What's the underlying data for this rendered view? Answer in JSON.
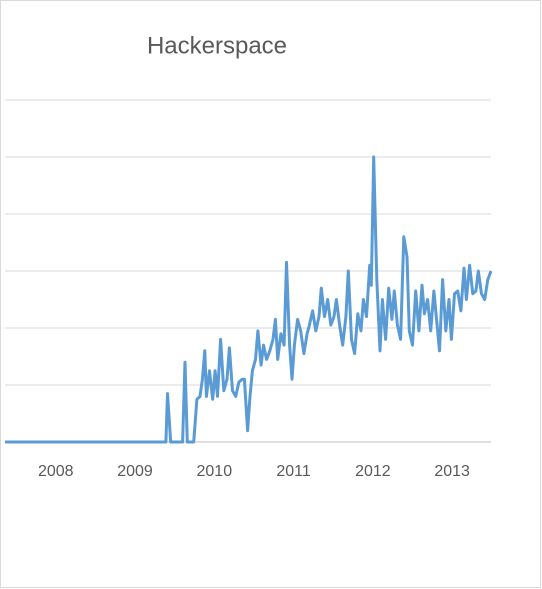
{
  "chart_data": {
    "type": "line",
    "title": "Hackerspace",
    "color": "#5b9bd5",
    "x": [
      2007.36,
      2009.39,
      2009.41,
      2009.45,
      2009.6,
      2009.63,
      2009.66,
      2009.74,
      2009.78,
      2009.82,
      2009.85,
      2009.88,
      2009.9,
      2009.94,
      2009.98,
      2010.01,
      2010.04,
      2010.08,
      2010.12,
      2010.16,
      2010.19,
      2010.23,
      2010.27,
      2010.31,
      2010.35,
      2010.38,
      2010.42,
      2010.45,
      2010.48,
      2010.52,
      2010.55,
      2010.59,
      2010.62,
      2010.66,
      2010.7,
      2010.74,
      2010.77,
      2010.8,
      2010.84,
      2010.88,
      2010.91,
      2010.95,
      2010.98,
      2011.01,
      2011.05,
      2011.09,
      2011.13,
      2011.17,
      2011.2,
      2011.24,
      2011.28,
      2011.32,
      2011.35,
      2011.39,
      2011.43,
      2011.47,
      2011.51,
      2011.54,
      2011.58,
      2011.62,
      2011.66,
      2011.69,
      2011.73,
      2011.77,
      2011.81,
      2011.85,
      2011.88,
      2011.92,
      2011.96,
      2011.98,
      2012.01,
      2012.05,
      2012.09,
      2012.12,
      2012.16,
      2012.2,
      2012.24,
      2012.27,
      2012.31,
      2012.35,
      2012.39,
      2012.43,
      2012.46,
      2012.5,
      2012.54,
      2012.58,
      2012.62,
      2012.65,
      2012.69,
      2012.73,
      2012.77,
      2012.8,
      2012.84,
      2012.88,
      2012.92,
      2012.96,
      2012.99,
      2013.03,
      2013.07,
      2013.11,
      2013.15,
      2013.18,
      2013.22,
      2013.26,
      2013.3,
      2013.33,
      2013.37,
      2013.41,
      2013.45,
      2013.49
    ],
    "values": [
      0,
      0,
      17,
      0,
      0,
      28,
      0,
      0,
      15,
      16,
      22,
      32,
      16,
      25,
      15,
      25,
      16,
      36,
      18,
      22,
      33,
      18,
      16,
      21,
      22,
      22,
      4,
      16,
      25,
      29,
      39,
      27,
      34,
      29,
      32,
      36,
      43,
      29,
      38,
      34,
      63,
      34,
      22,
      34,
      43,
      39,
      31,
      38,
      41,
      46,
      39,
      44,
      54,
      44,
      50,
      41,
      44,
      50,
      41,
      34,
      44,
      60,
      36,
      31,
      45,
      39,
      50,
      44,
      62,
      55,
      100,
      57,
      32,
      50,
      36,
      54,
      43,
      53,
      41,
      36,
      72,
      65,
      39,
      34,
      53,
      39,
      55,
      45,
      50,
      39,
      53,
      44,
      32,
      57,
      39,
      50,
      36,
      52,
      53,
      46,
      61,
      50,
      62,
      52,
      53,
      60,
      52,
      50,
      57,
      60
    ],
    "xlim": [
      2007.36,
      2013.49
    ],
    "xticks": [
      2007,
      2008,
      2009,
      2010,
      2011,
      2012,
      2013
    ],
    "ylim": [
      0,
      120
    ],
    "yticks": [
      0,
      20,
      40,
      60,
      80,
      100,
      120
    ],
    "grid": true
  }
}
